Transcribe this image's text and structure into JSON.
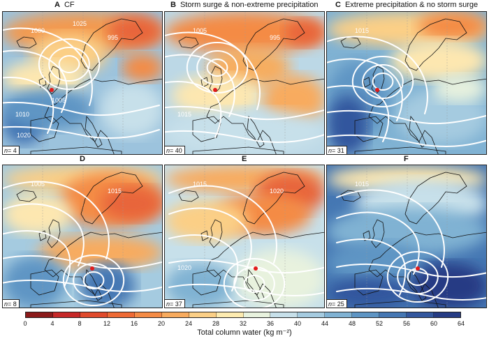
{
  "panels": [
    {
      "letter": "A",
      "title": "CF",
      "n_label": "n",
      "n_value": "= 4",
      "pressure_labels": [
        "1000",
        "995",
        "1010",
        "1005",
        "1020",
        "1025"
      ]
    },
    {
      "letter": "B",
      "title": "Storm surge & non-extreme precipitation",
      "n_label": "n",
      "n_value": "= 40",
      "pressure_labels": [
        "1005",
        "995",
        "1015"
      ]
    },
    {
      "letter": "C",
      "title": "Extreme precipitation & no storm surge",
      "n_label": "n",
      "n_value": "= 31",
      "pressure_labels": [
        "1015"
      ]
    },
    {
      "letter": "D",
      "title": "",
      "n_label": "n",
      "n_value": "= 8",
      "pressure_labels": [
        "1005",
        "1015"
      ]
    },
    {
      "letter": "E",
      "title": "",
      "n_label": "n",
      "n_value": "= 37",
      "pressure_labels": [
        "1015",
        "1020",
        "1020"
      ]
    },
    {
      "letter": "F",
      "title": "",
      "n_label": "n",
      "n_value": "= 25",
      "pressure_labels": [
        "1015"
      ]
    }
  ],
  "colorbar": {
    "ticks": [
      "0",
      "4",
      "8",
      "12",
      "16",
      "20",
      "24",
      "28",
      "32",
      "36",
      "40",
      "44",
      "48",
      "52",
      "56",
      "60",
      "64"
    ],
    "label": "Total column water (kg m⁻²)",
    "colors": [
      "#8b1a1a",
      "#c62828",
      "#e04a2c",
      "#ee6a35",
      "#f48b45",
      "#f8ab5e",
      "#fbcf86",
      "#fdebb0",
      "#e8f2de",
      "#c7e0ea",
      "#a5cbe0",
      "#80b2d3",
      "#5e95c4",
      "#4577b3",
      "#33579e",
      "#253b84"
    ]
  },
  "legend": {
    "marker": "red-dot-location"
  },
  "map_fields": {
    "A": {
      "bg": "#9cc3dd",
      "blobs": [
        [
          "#f39a4f",
          0,
          0,
          230,
          60
        ],
        [
          "#e8653a",
          150,
          5,
          80,
          45
        ],
        [
          "#fbcf86",
          40,
          30,
          110,
          60
        ],
        [
          "#fde7b0",
          0,
          70,
          120,
          50
        ],
        [
          "#3e6fb0",
          0,
          130,
          60,
          60
        ],
        [
          "#5e95c4",
          0,
          110,
          130,
          60
        ],
        [
          "#c7e0ea",
          140,
          100,
          90,
          80
        ],
        [
          "#f48b45",
          170,
          60,
          60,
          40
        ]
      ]
    },
    "B": {
      "bg": "#bcd8e6",
      "blobs": [
        [
          "#f48b45",
          0,
          0,
          230,
          60
        ],
        [
          "#e8653a",
          170,
          10,
          60,
          40
        ],
        [
          "#f6ad60",
          60,
          50,
          120,
          60
        ],
        [
          "#fde7b0",
          10,
          90,
          130,
          60
        ],
        [
          "#f8ab5e",
          140,
          90,
          90,
          70
        ],
        [
          "#c7e0ea",
          0,
          140,
          230,
          66
        ]
      ]
    },
    "C": {
      "bg": "#80b2d3",
      "blobs": [
        [
          "#fbcf86",
          0,
          0,
          230,
          50
        ],
        [
          "#f48b45",
          130,
          0,
          100,
          40
        ],
        [
          "#fde7b0",
          90,
          40,
          140,
          60
        ],
        [
          "#5e95c4",
          0,
          70,
          90,
          110
        ],
        [
          "#33579e",
          0,
          120,
          60,
          86
        ],
        [
          "#a5cbe0",
          100,
          110,
          130,
          80
        ],
        [
          "#e8f2de",
          150,
          90,
          80,
          40
        ]
      ]
    },
    "D": {
      "bg": "#a5cbe0",
      "blobs": [
        [
          "#fbcf86",
          0,
          0,
          230,
          40
        ],
        [
          "#f48b45",
          80,
          10,
          150,
          80
        ],
        [
          "#e8653a",
          140,
          30,
          90,
          50
        ],
        [
          "#fde7b0",
          0,
          40,
          100,
          60
        ],
        [
          "#f8ab5e",
          50,
          100,
          180,
          50
        ],
        [
          "#5e95c4",
          0,
          130,
          90,
          76
        ],
        [
          "#4577b3",
          110,
          140,
          80,
          66
        ]
      ]
    },
    "E": {
      "bg": "#c7e0ea",
      "blobs": [
        [
          "#f8ab5e",
          0,
          0,
          230,
          40
        ],
        [
          "#e8653a",
          130,
          10,
          100,
          60
        ],
        [
          "#f48b45",
          70,
          40,
          140,
          60
        ],
        [
          "#fbcf86",
          0,
          50,
          120,
          60
        ],
        [
          "#80b2d3",
          0,
          140,
          100,
          66
        ],
        [
          "#e8f2de",
          100,
          120,
          130,
          86
        ]
      ]
    },
    "F": {
      "bg": "#4577b3",
      "blobs": [
        [
          "#fde7b0",
          0,
          0,
          230,
          40
        ],
        [
          "#c7e0ea",
          40,
          20,
          190,
          70
        ],
        [
          "#80b2d3",
          0,
          60,
          230,
          70
        ],
        [
          "#5e95c4",
          0,
          110,
          140,
          60
        ],
        [
          "#253b84",
          120,
          140,
          110,
          66
        ],
        [
          "#33579e",
          0,
          160,
          120,
          46
        ]
      ]
    }
  }
}
